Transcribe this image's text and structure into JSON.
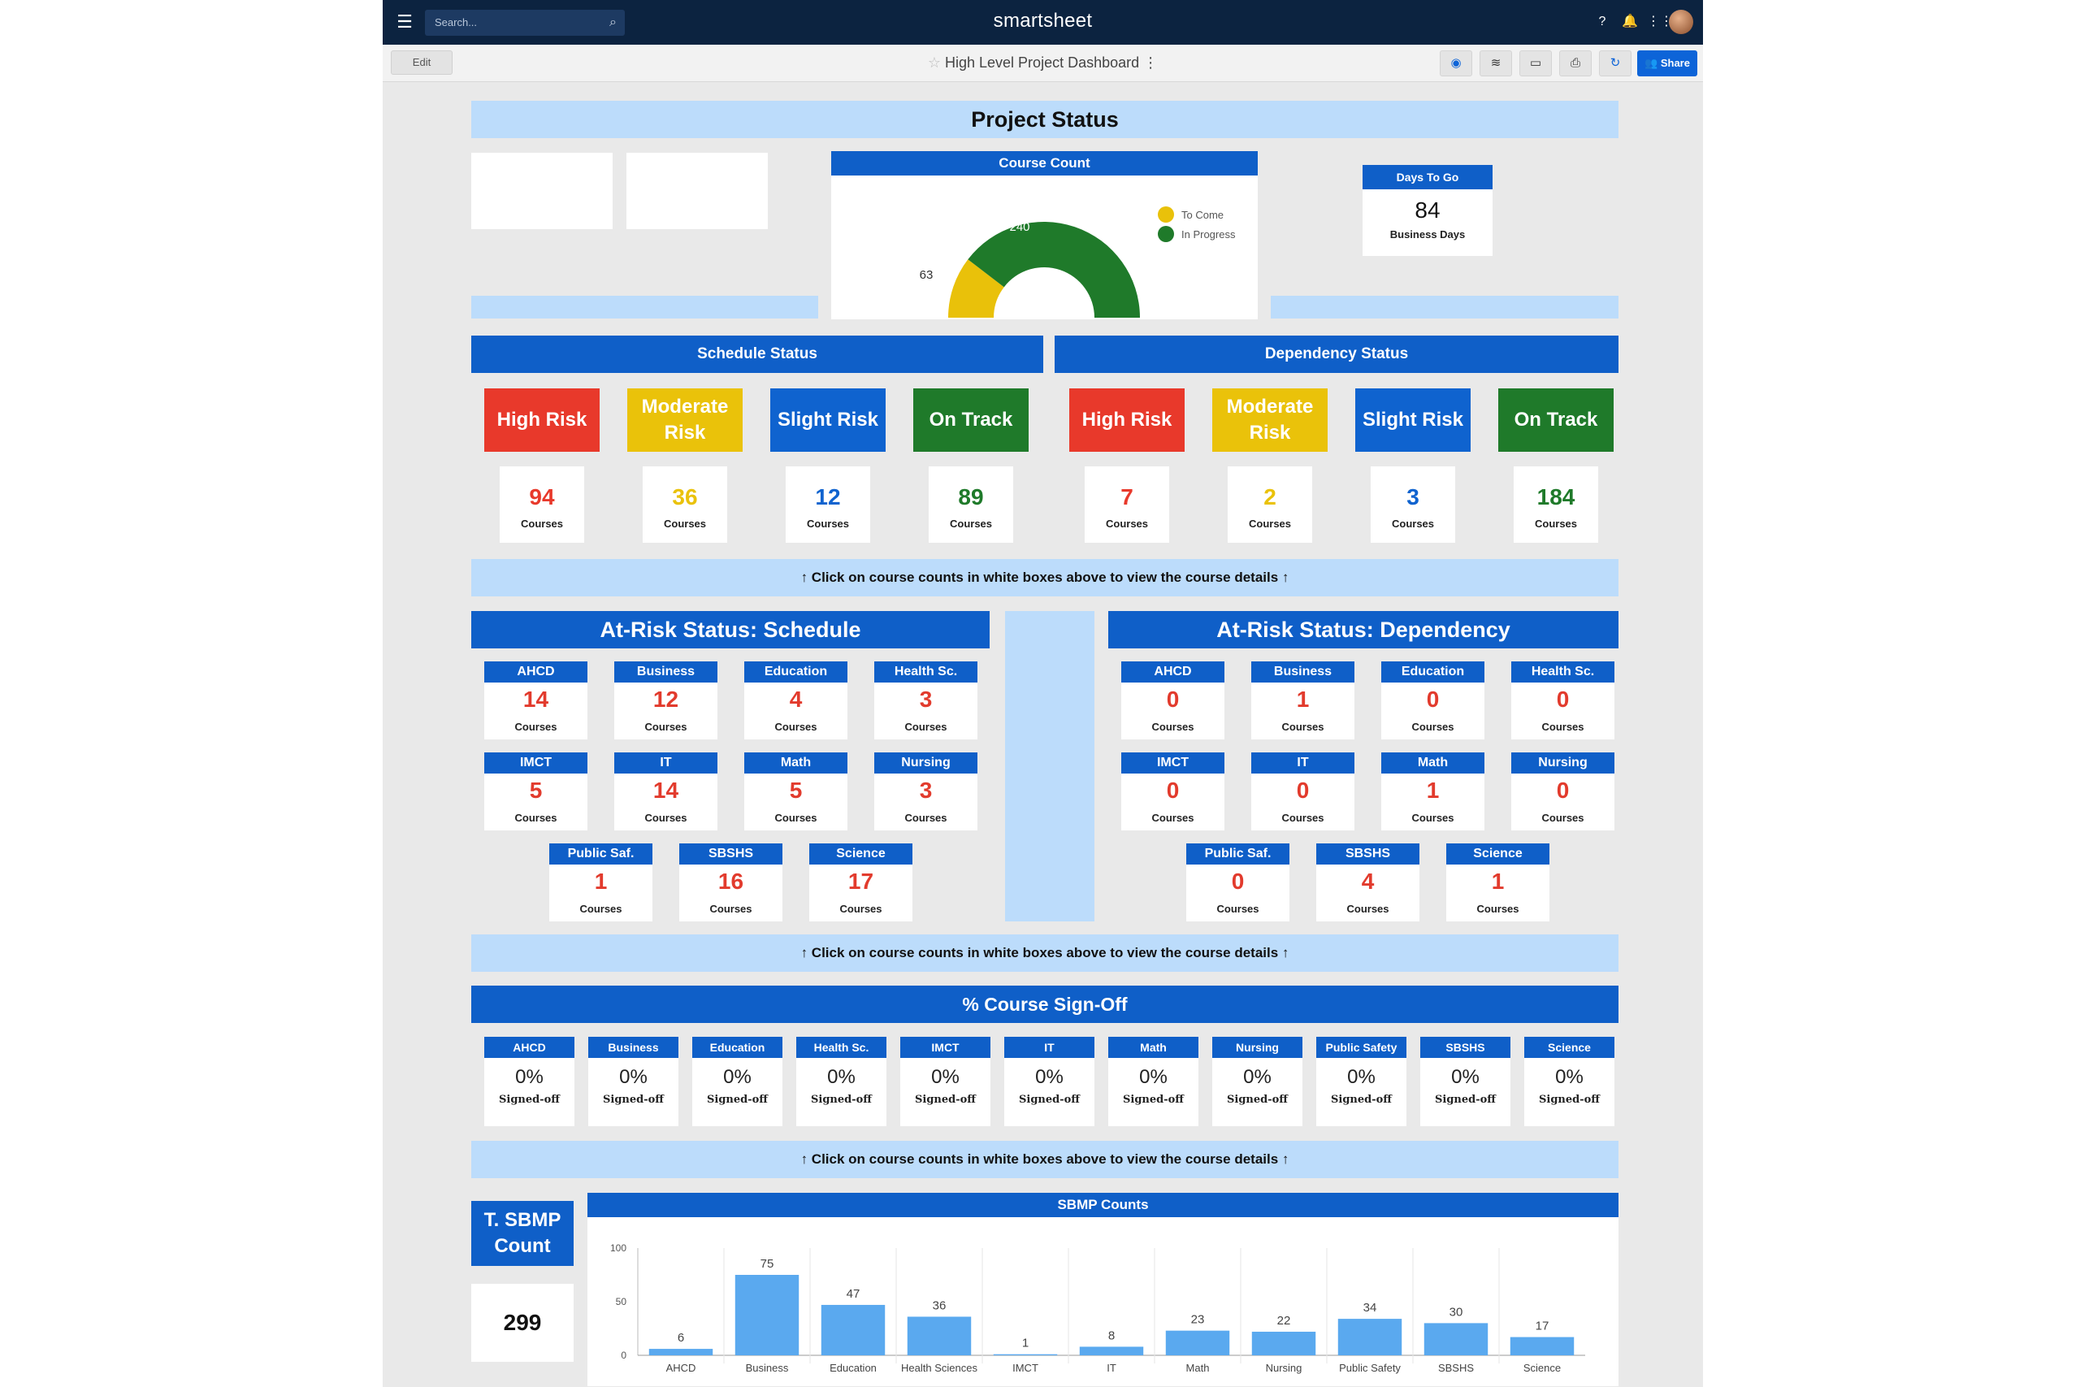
{
  "app": {
    "brand": "smartsheet",
    "search_placeholder": "Search...",
    "edit_label": "Edit",
    "dashboard_title": "High Level Project Dashboard",
    "share_label": "Share"
  },
  "dashboard": {
    "project_status_title": "Project Status",
    "course_count": {
      "title": "Course Count",
      "legend": [
        "To Come",
        "In Progress"
      ],
      "values": {
        "to_come": 63,
        "in_progress": 240
      },
      "colors": {
        "to_come": "#e9c10a",
        "in_progress": "#1f7a2a"
      }
    },
    "days_to_go": {
      "title": "Days To Go",
      "value": "84",
      "unit": "Business Days"
    },
    "schedule_status": {
      "title": "Schedule Status",
      "cards": [
        {
          "label": "High Risk",
          "count": "94",
          "unit": "Courses"
        },
        {
          "label": "Moderate Risk",
          "count": "36",
          "unit": "Courses"
        },
        {
          "label": "Slight Risk",
          "count": "12",
          "unit": "Courses"
        },
        {
          "label": "On Track",
          "count": "89",
          "unit": "Courses"
        }
      ]
    },
    "dependency_status": {
      "title": "Dependency Status",
      "cards": [
        {
          "label": "High Risk",
          "count": "7",
          "unit": "Courses"
        },
        {
          "label": "Moderate Risk",
          "count": "2",
          "unit": "Courses"
        },
        {
          "label": "Slight Risk",
          "count": "3",
          "unit": "Courses"
        },
        {
          "label": "On Track",
          "count": "184",
          "unit": "Courses"
        }
      ]
    },
    "status_colors": {
      "high": "#e8392b",
      "moderate": "#eac20a",
      "slight": "#0f63cf",
      "on_track": "#1f7a2a"
    },
    "note_text": "↑ Click on course counts in white boxes above to view the course details ↑",
    "at_risk_schedule": {
      "title": "At-Risk Status: Schedule",
      "tiles": [
        {
          "name": "AHCD",
          "value": "14",
          "unit": "Courses"
        },
        {
          "name": "Business",
          "value": "12",
          "unit": "Courses"
        },
        {
          "name": "Education",
          "value": "4",
          "unit": "Courses"
        },
        {
          "name": "Health Sc.",
          "value": "3",
          "unit": "Courses"
        },
        {
          "name": "IMCT",
          "value": "5",
          "unit": "Courses"
        },
        {
          "name": "IT",
          "value": "14",
          "unit": "Courses"
        },
        {
          "name": "Math",
          "value": "5",
          "unit": "Courses"
        },
        {
          "name": "Nursing",
          "value": "3",
          "unit": "Courses"
        },
        {
          "name": "Public Saf.",
          "value": "1",
          "unit": "Courses"
        },
        {
          "name": "SBSHS",
          "value": "16",
          "unit": "Courses"
        },
        {
          "name": "Science",
          "value": "17",
          "unit": "Courses"
        }
      ]
    },
    "at_risk_dependency": {
      "title": "At-Risk Status: Dependency",
      "tiles": [
        {
          "name": "AHCD",
          "value": "0",
          "unit": "Courses"
        },
        {
          "name": "Business",
          "value": "1",
          "unit": "Courses"
        },
        {
          "name": "Education",
          "value": "0",
          "unit": "Courses"
        },
        {
          "name": "Health Sc.",
          "value": "0",
          "unit": "Courses"
        },
        {
          "name": "IMCT",
          "value": "0",
          "unit": "Courses"
        },
        {
          "name": "IT",
          "value": "0",
          "unit": "Courses"
        },
        {
          "name": "Math",
          "value": "1",
          "unit": "Courses"
        },
        {
          "name": "Nursing",
          "value": "0",
          "unit": "Courses"
        },
        {
          "name": "Public Saf.",
          "value": "0",
          "unit": "Courses"
        },
        {
          "name": "SBSHS",
          "value": "4",
          "unit": "Courses"
        },
        {
          "name": "Science",
          "value": "1",
          "unit": "Courses"
        }
      ]
    },
    "signoff": {
      "title": "% Course Sign-Off",
      "tiles": [
        {
          "name": "AHCD",
          "value": "0%",
          "unit": "Signed-off"
        },
        {
          "name": "Business",
          "value": "0%",
          "unit": "Signed-off"
        },
        {
          "name": "Education",
          "value": "0%",
          "unit": "Signed-off"
        },
        {
          "name": "Health Sc.",
          "value": "0%",
          "unit": "Signed-off"
        },
        {
          "name": "IMCT",
          "value": "0%",
          "unit": "Signed-off"
        },
        {
          "name": "IT",
          "value": "0%",
          "unit": "Signed-off"
        },
        {
          "name": "Math",
          "value": "0%",
          "unit": "Signed-off"
        },
        {
          "name": "Nursing",
          "value": "0%",
          "unit": "Signed-off"
        },
        {
          "name": "Public Safety",
          "value": "0%",
          "unit": "Signed-off"
        },
        {
          "name": "SBSHS",
          "value": "0%",
          "unit": "Signed-off"
        },
        {
          "name": "Science",
          "value": "0%",
          "unit": "Signed-off"
        }
      ]
    },
    "sbmp_total": {
      "title": "T. SBMP Count",
      "value": "299"
    },
    "sbmp_chart_title": "SBMP Counts"
  },
  "chart_data": {
    "type": "bar",
    "title": "SBMP Counts",
    "categories": [
      "AHCD",
      "Business",
      "Education",
      "Health Sciences",
      "IMCT",
      "IT",
      "Math",
      "Nursing",
      "Public Safety",
      "SBSHS",
      "Science"
    ],
    "values": [
      6,
      75,
      47,
      36,
      1,
      8,
      23,
      22,
      34,
      30,
      17
    ],
    "ylim": [
      0,
      100
    ],
    "yticks": [
      0,
      50,
      100
    ],
    "bar_color": "#5aa9ef",
    "xlabel": "",
    "ylabel": ""
  }
}
